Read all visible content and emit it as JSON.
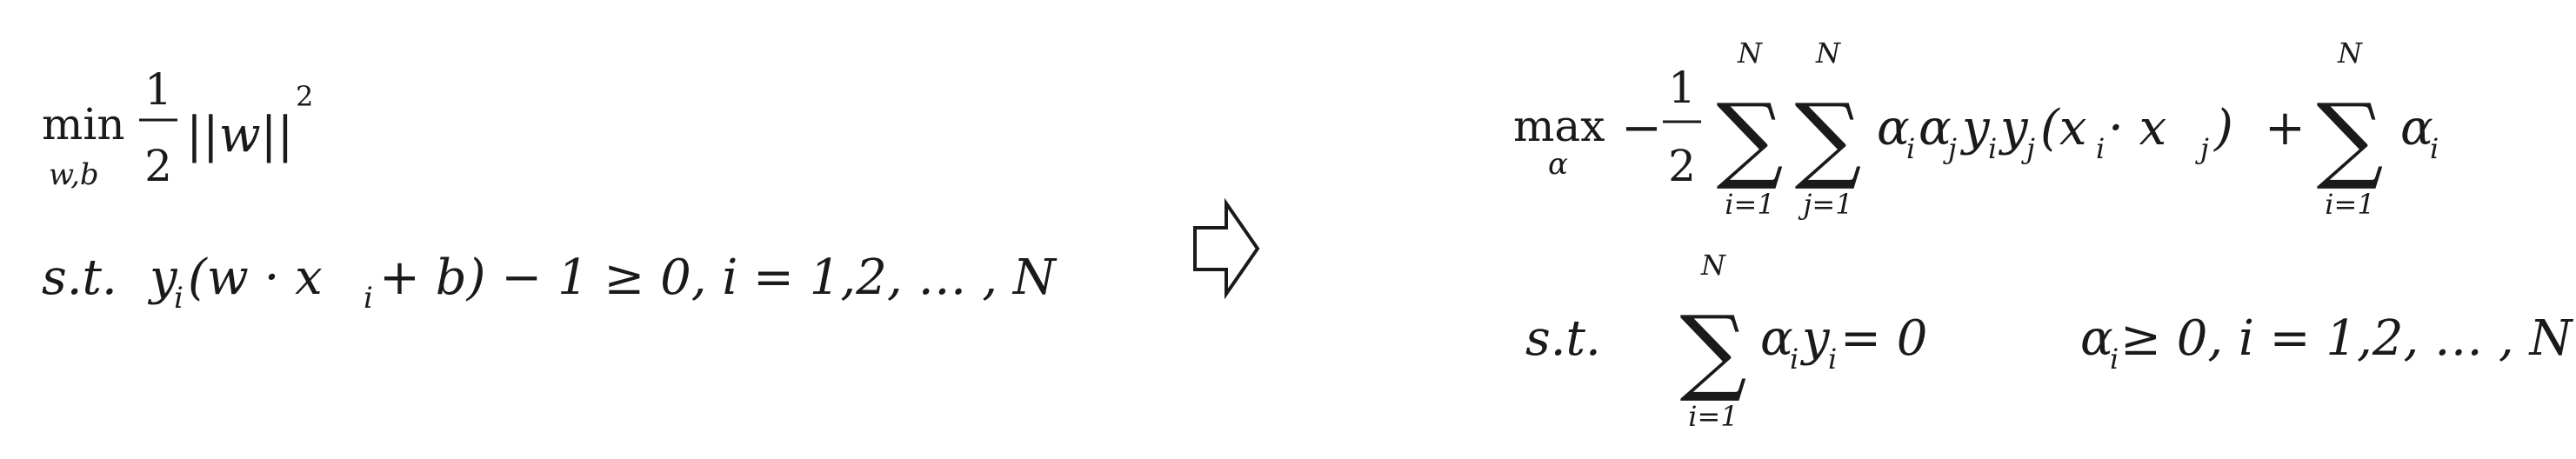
{
  "primal": {
    "min": "min",
    "min_sub": "w,b",
    "half_num": "1",
    "half_den": "2",
    "norm": "||w||",
    "sq": "2",
    "st": "s.t.",
    "y": "y",
    "i": "i",
    "open": "(w · x",
    "close": " + b) − 1 ≥ 0, i = 1,2, … , N"
  },
  "arrow": {
    "icon": "double-arrow-right-icon"
  },
  "dual": {
    "max": "max",
    "max_sub": "α",
    "minus": "−",
    "half_num": "1",
    "half_den": "2",
    "sum1_top": "N",
    "sum1_bot": "i=1",
    "sum2_top": "N",
    "sum2_bot": "j=1",
    "term_a": "α",
    "term_i": "i",
    "term_b": "α",
    "term_j": "j",
    "term_c": "y",
    "term_d": "y",
    "term_e": "(x",
    "term_f": " · x",
    "term_g": ")",
    "plus": "+",
    "sum3_top": "N",
    "sum3_bot": "i=1",
    "term_h": "α",
    "st": "s.t.",
    "sum4_top": "N",
    "sum4_bot": "i=1",
    "c1_a": "α",
    "c1_b": "y",
    "c1_eq": " = 0",
    "c2_a": "α",
    "c2_rest": " ≥ 0, i = 1,2, … , N"
  }
}
